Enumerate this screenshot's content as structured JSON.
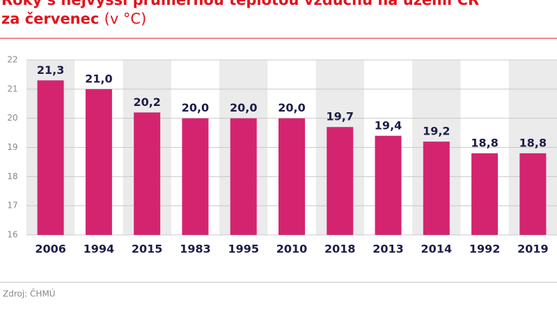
{
  "chart_data": {
    "type": "bar",
    "title": "Roky s nejvyšší průměrnou teplotou vzduchu na území ČR za červenec",
    "unit": "(v °C)",
    "source": "Zdroj: ČHMÚ",
    "categories": [
      "2006",
      "1994",
      "2015",
      "1983",
      "1995",
      "2010",
      "2018",
      "2013",
      "2014",
      "1992",
      "2019"
    ],
    "values": [
      21.3,
      21.0,
      20.2,
      20.0,
      20.0,
      20.0,
      19.7,
      19.4,
      19.2,
      18.8,
      18.8
    ],
    "value_labels": [
      "21,3",
      "21,0",
      "20,2",
      "20,0",
      "20,0",
      "20,0",
      "19,7",
      "19,4",
      "19,2",
      "18,8",
      "18,8"
    ],
    "color": "#d4246f",
    "ylim": [
      16,
      22
    ],
    "yticks": [
      16,
      17,
      18,
      19,
      20,
      21,
      22
    ],
    "grid": true
  }
}
